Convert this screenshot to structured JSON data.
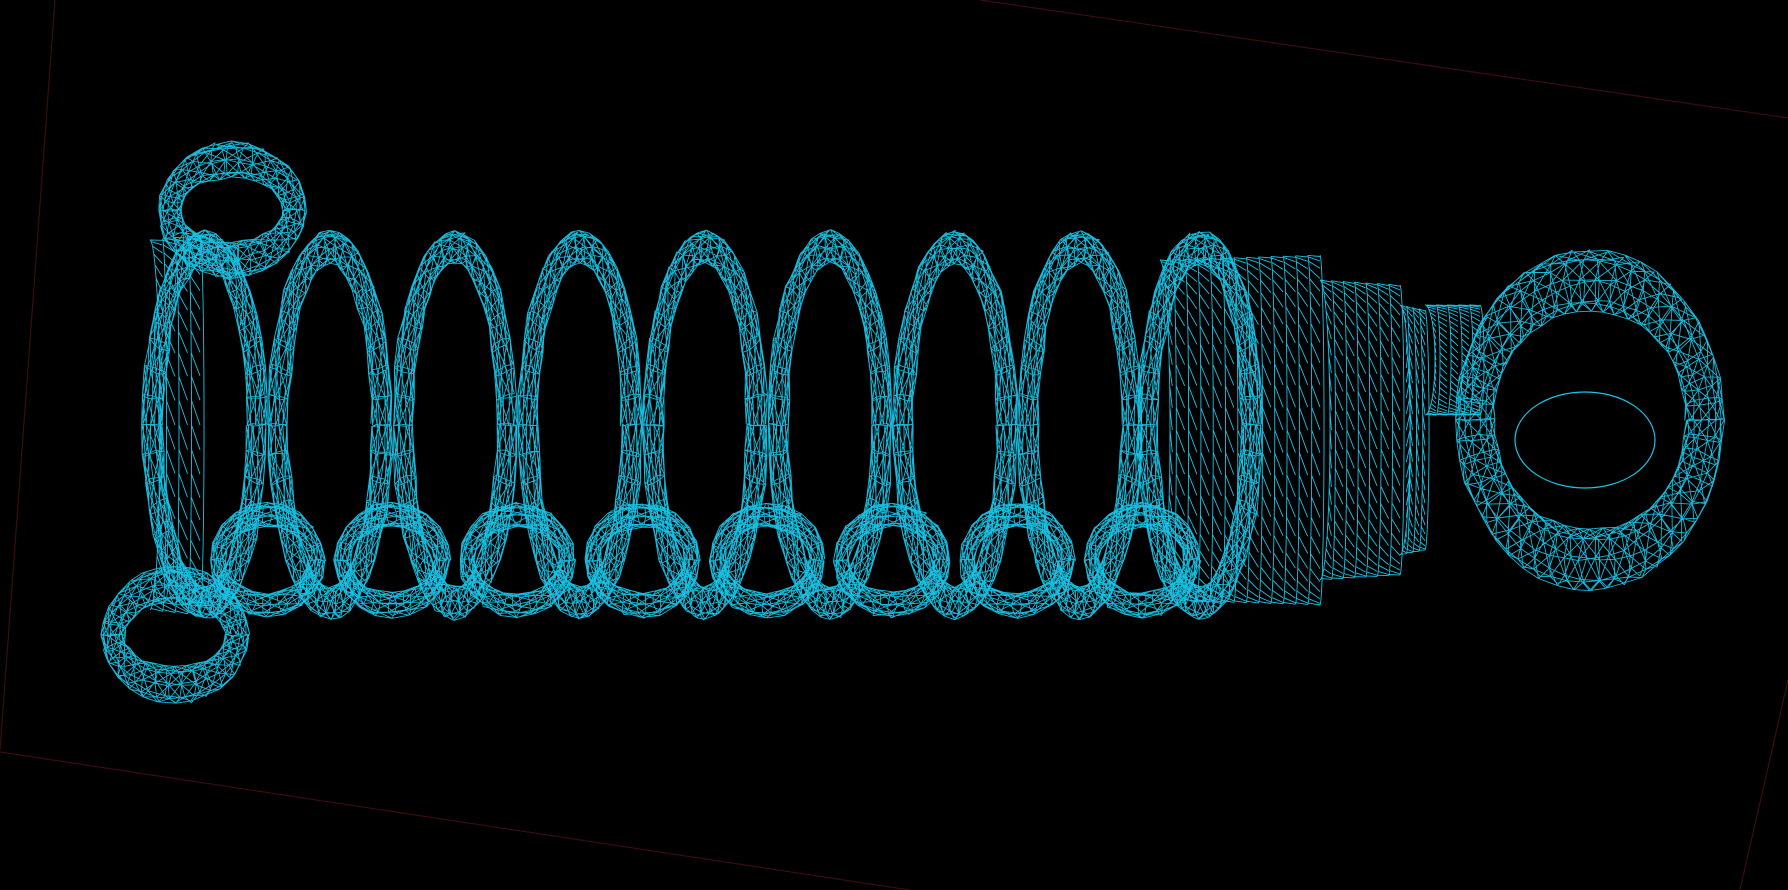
{
  "viewport": {
    "background_color": "#000000",
    "wire_color": "#19c3e6",
    "boundary_color": "#3a0d10",
    "render_mode": "wireframe"
  },
  "model": {
    "parts": [
      {
        "name": "top-eyelet"
      },
      {
        "name": "bottom-eyelet"
      },
      {
        "name": "spring-coils",
        "turns": 9
      },
      {
        "name": "spring-seat"
      },
      {
        "name": "damper-body"
      },
      {
        "name": "piston-rod"
      },
      {
        "name": "rod-end-eye"
      }
    ]
  }
}
